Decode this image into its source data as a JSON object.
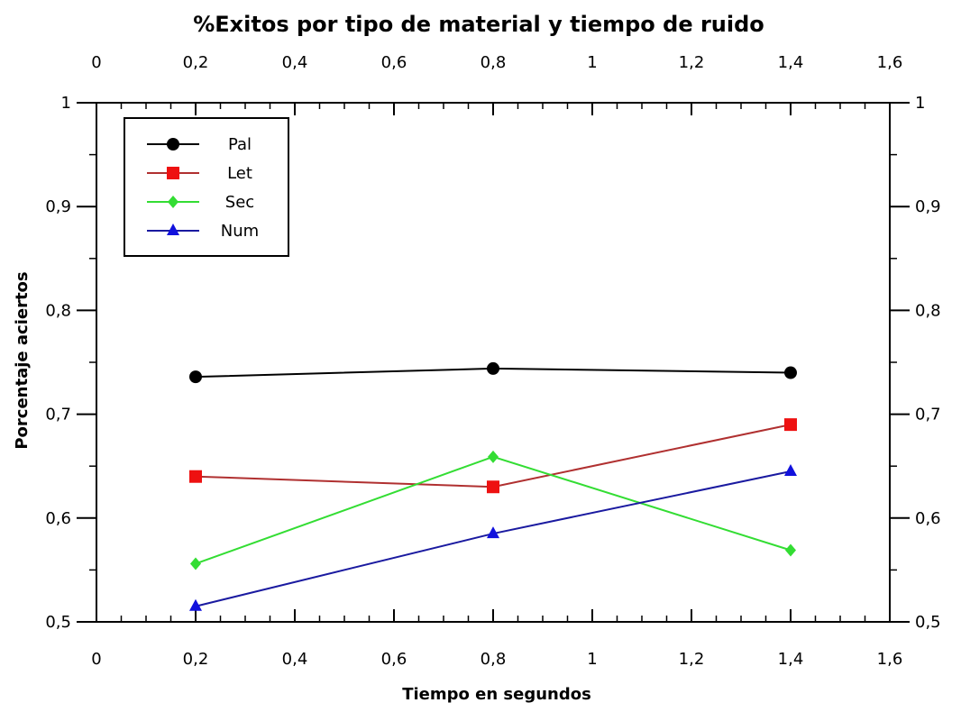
{
  "chart_data": {
    "type": "line",
    "title": "%Exitos por tipo de material y tiempo de ruido",
    "xlabel": "Tiempo en segundos",
    "ylabel": "Porcentaje aciertos",
    "xlim": [
      0,
      1.6
    ],
    "ylim": [
      0.5,
      1.0
    ],
    "x_ticks": [
      "0",
      "0,2",
      "0,4",
      "0,6",
      "0,8",
      "1",
      "1,2",
      "1,4",
      "1,6"
    ],
    "y_ticks": [
      "0,5",
      "0,6",
      "0,7",
      "0,8",
      "0,9",
      "1"
    ],
    "grid": false,
    "legend_position": "top-left",
    "x": [
      0.2,
      0.8,
      1.4
    ],
    "series": [
      {
        "name": "Pal",
        "values": [
          0.736,
          0.744,
          0.74
        ],
        "color": "#000000",
        "marker": "circle"
      },
      {
        "name": "Let",
        "values": [
          0.64,
          0.63,
          0.69
        ],
        "color": "#b03030",
        "marker_color": "#ee1111",
        "marker": "square"
      },
      {
        "name": "Sec",
        "values": [
          0.556,
          0.659,
          0.569
        ],
        "color": "#33dd33",
        "marker": "diamond"
      },
      {
        "name": "Num",
        "values": [
          0.515,
          0.585,
          0.645
        ],
        "color": "#1a1aa0",
        "marker_color": "#1111dd",
        "marker": "triangle"
      }
    ]
  }
}
